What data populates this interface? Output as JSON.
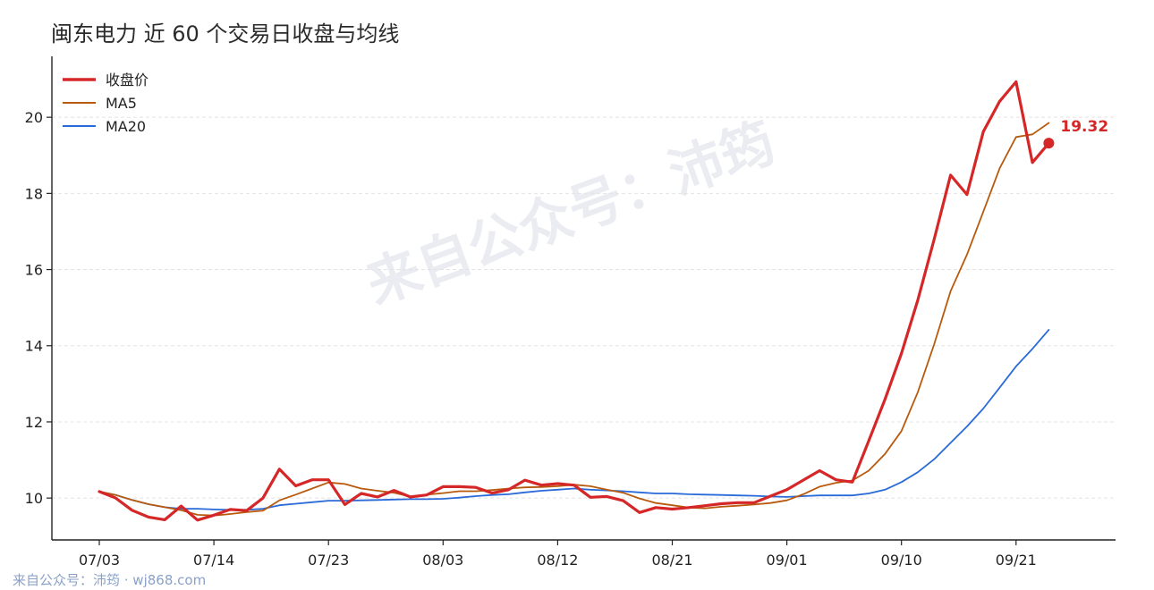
{
  "title": "闽东电力 近 60 个交易日收盘与均线",
  "watermark": "来自公众号：沛筠",
  "footer": "来自公众号：沛筠 · wj868.com",
  "colors": {
    "close": "#d62728",
    "ma5": "#b85a0e",
    "ma20": "#2a6ad8",
    "grid": "#e3e3e3",
    "axis": "#222222"
  },
  "chart_data": {
    "type": "line",
    "title": "闽东电力 近 60 个交易日收盘与均线",
    "xlabel": "",
    "ylabel": "",
    "ylim": [
      8.9,
      21.6
    ],
    "yticks": [
      10,
      12,
      14,
      16,
      18,
      20
    ],
    "grid": "horizontal dashed",
    "legend_position": "top-left",
    "x_tick_labels": [
      {
        "label": "07/03",
        "index": 0
      },
      {
        "label": "07/14",
        "index": 7
      },
      {
        "label": "07/23",
        "index": 14
      },
      {
        "label": "08/03",
        "index": 21
      },
      {
        "label": "08/12",
        "index": 28
      },
      {
        "label": "08/21",
        "index": 35
      },
      {
        "label": "09/01",
        "index": 42
      },
      {
        "label": "09/10",
        "index": 49
      },
      {
        "label": "09/21",
        "index": 56
      }
    ],
    "last_value_label": "19.32",
    "series": [
      {
        "name": "收盘价",
        "key": "close",
        "values": [
          10.17,
          10.0,
          9.68,
          9.5,
          9.43,
          9.79,
          9.42,
          9.55,
          9.7,
          9.67,
          10.0,
          10.76,
          10.32,
          10.48,
          10.48,
          9.83,
          10.12,
          10.03,
          10.2,
          10.03,
          10.08,
          10.3,
          10.3,
          10.28,
          10.13,
          10.22,
          10.47,
          10.34,
          10.38,
          10.34,
          10.02,
          10.04,
          9.93,
          9.62,
          9.75,
          9.71,
          9.75,
          9.8,
          9.85,
          9.88,
          9.88,
          10.05,
          10.22,
          10.47,
          10.72,
          10.48,
          10.42,
          11.5,
          12.6,
          13.8,
          15.2,
          16.8,
          18.48,
          17.97,
          19.62,
          20.42,
          20.93,
          18.81,
          19.32
        ]
      },
      {
        "name": "MA5",
        "key": "ma5",
        "values": [
          10.17,
          10.08,
          9.95,
          9.84,
          9.76,
          9.68,
          9.56,
          9.54,
          9.58,
          9.63,
          9.67,
          9.94,
          10.09,
          10.25,
          10.41,
          10.37,
          10.25,
          10.19,
          10.14,
          10.04,
          10.09,
          10.13,
          10.18,
          10.18,
          10.21,
          10.25,
          10.28,
          10.29,
          10.31,
          10.35,
          10.31,
          10.22,
          10.14,
          9.99,
          9.87,
          9.81,
          9.75,
          9.73,
          9.77,
          9.8,
          9.83,
          9.87,
          9.94,
          10.1,
          10.3,
          10.4,
          10.46,
          10.72,
          11.16,
          11.76,
          12.78,
          14.04,
          15.43,
          16.39,
          17.52,
          18.66,
          19.48,
          19.55,
          19.85
        ]
      },
      {
        "name": "MA20",
        "key": "ma20",
        "values": [
          10.17,
          10.08,
          9.95,
          9.84,
          9.76,
          9.72,
          9.72,
          9.7,
          9.69,
          9.69,
          9.72,
          9.81,
          9.85,
          9.89,
          9.93,
          9.93,
          9.94,
          9.95,
          9.96,
          9.97,
          9.97,
          9.98,
          10.01,
          10.05,
          10.08,
          10.1,
          10.15,
          10.19,
          10.22,
          10.25,
          10.22,
          10.2,
          10.18,
          10.15,
          10.12,
          10.12,
          10.1,
          10.09,
          10.08,
          10.07,
          10.06,
          10.04,
          10.03,
          10.05,
          10.07,
          10.07,
          10.07,
          10.12,
          10.22,
          10.42,
          10.68,
          11.02,
          11.45,
          11.88,
          12.35,
          12.9,
          13.46,
          13.92,
          14.42
        ]
      }
    ]
  }
}
